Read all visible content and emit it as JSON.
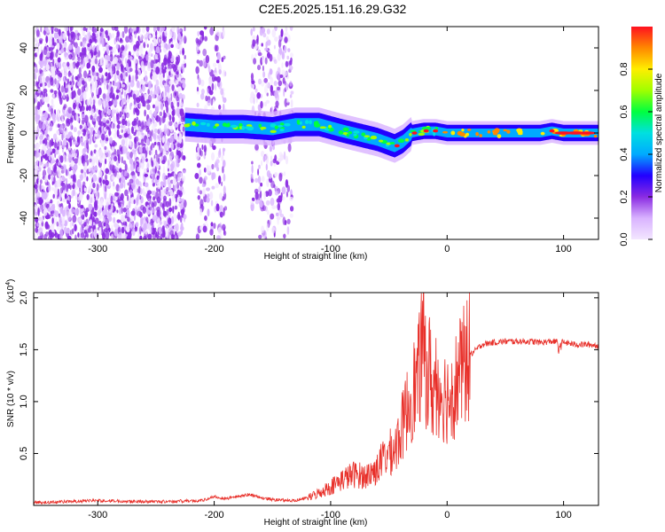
{
  "title": "C2E5.2025.151.16.29.G32",
  "chart_data": [
    {
      "type": "heatmap",
      "xlabel": "Height of straight line (km)",
      "ylabel": "Frequency (Hz)",
      "xlim": [
        -355,
        130
      ],
      "ylim": [
        -50,
        50
      ],
      "xticks": [
        -300,
        -200,
        -100,
        0,
        100
      ],
      "yticks": [
        -40,
        -20,
        0,
        20,
        40
      ],
      "colorbar": {
        "label": "Normalized spectral amplitude",
        "range": [
          0,
          1
        ],
        "ticks": [
          0.0,
          0.2,
          0.4,
          0.6,
          0.8
        ],
        "colormap": [
          "#f3e6ff",
          "#d9b3ff",
          "#8a2be2",
          "#2200ff",
          "#00aaff",
          "#00e0e0",
          "#00ff40",
          "#a0ff00",
          "#ffee00",
          "#ff8800",
          "#ff1020"
        ]
      },
      "noise_regions_x": [
        [
          -355,
          -225
        ],
        [
          -215,
          -190
        ],
        [
          -168,
          -133
        ]
      ],
      "signal_ridge": {
        "x": [
          -225,
          -200,
          -175,
          -150,
          -130,
          -110,
          -90,
          -75,
          -60,
          -45,
          -38,
          -30,
          -20,
          -10,
          0,
          20,
          50,
          80,
          90,
          100,
          130
        ],
        "y": [
          4,
          3,
          3,
          2,
          4,
          4,
          1,
          -1,
          -3,
          -6,
          -4,
          0,
          1,
          1,
          0,
          0,
          0,
          0,
          1,
          0,
          0
        ]
      }
    },
    {
      "type": "line",
      "xlabel": "Height of straight line (km)",
      "ylabel": "SNR (10 * v/v)",
      "y_multiplier_label": "(x10",
      "y_multiplier_exp": "4",
      "y_multiplier_close": ")",
      "xlim": [
        -355,
        130
      ],
      "ylim": [
        0,
        2.05
      ],
      "xticks": [
        -300,
        -200,
        -100,
        0,
        100
      ],
      "yticks": [
        0.5,
        1.0,
        1.5,
        2.0
      ],
      "ytick_labels": [
        "0.5",
        "1.0",
        "1.5",
        "2.0"
      ],
      "line_color": "#e8302a",
      "series": [
        {
          "x": [
            -355,
            -300,
            -250,
            -210,
            -200,
            -190,
            -170,
            -160,
            -150,
            -130,
            -120,
            -110,
            -100,
            -90,
            -80,
            -70,
            -60,
            -55,
            -50,
            -45,
            -40,
            -35,
            -30,
            -25,
            -22,
            -20,
            -17,
            -15,
            -12,
            -10,
            -5,
            0,
            5,
            10,
            15,
            20,
            25,
            30,
            40,
            50,
            60,
            70,
            80,
            90,
            100,
            110,
            120,
            130
          ],
          "y": [
            0.02,
            0.04,
            0.03,
            0.04,
            0.08,
            0.06,
            0.1,
            0.07,
            0.05,
            0.04,
            0.07,
            0.12,
            0.18,
            0.25,
            0.3,
            0.28,
            0.35,
            0.45,
            0.5,
            0.55,
            0.7,
            0.9,
            1.1,
            1.2,
            1.5,
            1.6,
            1.2,
            1.3,
            1.05,
            1.2,
            1.1,
            1.05,
            1.1,
            1.25,
            1.35,
            1.45,
            1.5,
            1.55,
            1.57,
            1.58,
            1.58,
            1.58,
            1.57,
            1.58,
            1.57,
            1.55,
            1.55,
            1.54
          ]
        }
      ]
    }
  ]
}
